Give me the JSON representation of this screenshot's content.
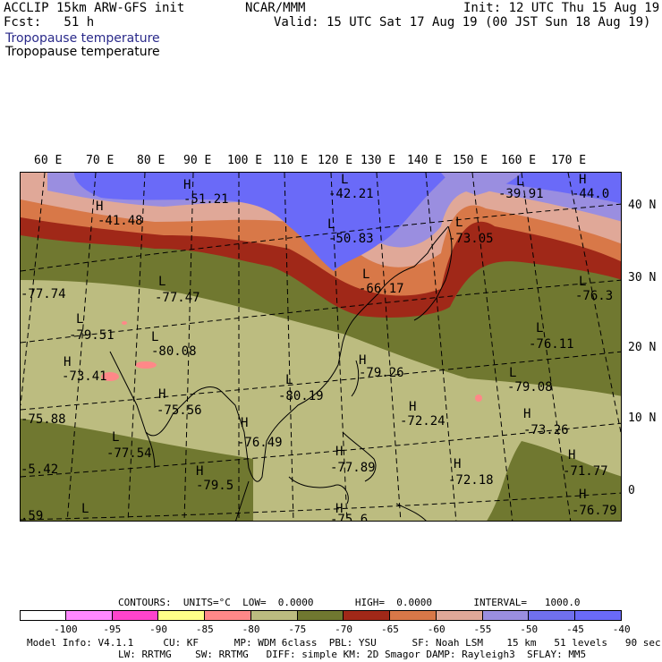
{
  "header": {
    "model_line": "ACCLIP 15km ARW-GFS init",
    "forecast_line": "Fcst:   51 h",
    "source": "NCAR/MMM",
    "init": "Init: 12 UTC Thu 15 Aug 19",
    "valid": "Valid: 15 UTC Sat 17 Aug 19 (00 JST Sun 18 Aug 19)",
    "field_title_blue": "Tropopause temperature",
    "field_title_black": "Tropopause temperature"
  },
  "map": {
    "longitude_labels": [
      "60 E",
      "70 E",
      "80 E",
      "90 E",
      "100 E",
      "110 E",
      "120 E",
      "130 E",
      "140 E",
      "150 E",
      "160 E",
      "170 E"
    ],
    "latitude_labels": [
      "40 N",
      "30 N",
      "20 N",
      "10 N",
      "0"
    ],
    "markers": [
      {
        "type": "H",
        "value": "-41.48"
      },
      {
        "type": "H",
        "value": "-51.21"
      },
      {
        "type": "L",
        "value": "-42.21"
      },
      {
        "type": "L",
        "value": "-50.83"
      },
      {
        "type": "L",
        "value": "-39.91"
      },
      {
        "type": "H",
        "value": "-44.0"
      },
      {
        "type": "L",
        "value": "-73.05"
      },
      {
        "type": "L",
        "value": "-66.17"
      },
      {
        "type": "L",
        "value": "-77.74"
      },
      {
        "type": "L",
        "value": "-77.47"
      },
      {
        "type": "L",
        "value": "-76.3"
      },
      {
        "type": "L",
        "value": "-79.51"
      },
      {
        "type": "L",
        "value": "-80.08"
      },
      {
        "type": "L",
        "value": "-76.11"
      },
      {
        "type": "H",
        "value": "-73.41"
      },
      {
        "type": "H",
        "value": "-79.26"
      },
      {
        "type": "L",
        "value": "-79.08"
      },
      {
        "type": "H",
        "value": "-75.56"
      },
      {
        "type": "L",
        "value": "-80.19"
      },
      {
        "type": "L",
        "value": "-75.88"
      },
      {
        "type": "H",
        "value": "-72.24"
      },
      {
        "type": "H",
        "value": "-73.26"
      },
      {
        "type": "H",
        "value": "-76.49"
      },
      {
        "type": "L",
        "value": "-77.54"
      },
      {
        "type": "H",
        "value": "-77.89"
      },
      {
        "type": "H",
        "value": "-72.18"
      },
      {
        "type": "H",
        "value": "-71.77"
      },
      {
        "type": "L",
        "value": "-5.42"
      },
      {
        "type": "H",
        "value": "-79.5"
      },
      {
        "type": "H",
        "value": "-76.79"
      },
      {
        "type": "H",
        "value": "-75.6"
      },
      {
        "type": "L",
        "value": ".59"
      }
    ]
  },
  "legend": {
    "contours": "CONTOURS:  UNITS=°C  LOW=  0.0000       HIGH=  0.0000       INTERVAL=   1000.0",
    "tick_labels": [
      "-100",
      "-95",
      "-90",
      "-85",
      "-80",
      "-75",
      "-70",
      "-65",
      "-60",
      "-55",
      "-50",
      "-45",
      "-40",
      "°C"
    ],
    "colors": [
      "#ffffff",
      "#ff88ff",
      "#ff44cc",
      "#ffff88",
      "#ff8888",
      "#bcbc80",
      "#707830",
      "#a02818",
      "#d87848",
      "#e0a898",
      "#9a8ee0",
      "#7070ee",
      "#6a6af8"
    ]
  },
  "footer": {
    "line1": "Model Info: V4.1.1     CU: KF      MP: WDM 6class  PBL: YSU      SF: Noah LSM    15 km   51 levels   90 sec",
    "line2": "LW: RRTMG    SW: RRTMG   DIFF: simple KM: 2D Smagor DAMP: Rayleigh3  SFLAY: MM5"
  }
}
